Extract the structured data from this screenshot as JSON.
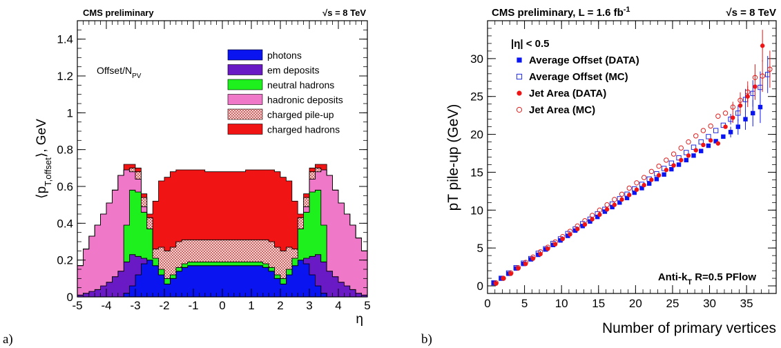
{
  "panel_a": {
    "tag": "a)",
    "header_left": "CMS preliminary",
    "header_right": "√s = 8 TeV",
    "ylabel": "⟨p_{T,offset}⟩, GeV",
    "xlabel": "η",
    "annotation": "Offset/N_{PV}"
  },
  "panel_b": {
    "tag": "b)",
    "header_left": "CMS preliminary, L = 1.6 fb^{-1}",
    "header_right": "√s = 8 TeV",
    "ylabel": "pT pile-up (GeV)",
    "xlabel": "Number of primary vertices",
    "cut_label": "|η| < 0.5",
    "algo_label": "Anti-k_{T} R=0.5 PFlow"
  },
  "colors": {
    "photons": "#0a14f0",
    "em_deposits": "#6a1ac4",
    "neutral_hadrons": "#1ef01e",
    "hadronic_deposits": "#f078c8",
    "charged_pileup": "#f2c4c4",
    "charged_hadrons": "#f01414",
    "offset_data": "#0a14f0",
    "offset_mc": "#1e28e0",
    "jetarea_data": "#f01414",
    "jetarea_mc": "#e01e1e"
  },
  "chart_data": [
    {
      "type": "area",
      "stacked": true,
      "x": [
        -5.0,
        -4.8,
        -4.6,
        -4.4,
        -4.2,
        -4.0,
        -3.8,
        -3.6,
        -3.4,
        -3.2,
        -3.0,
        -2.8,
        -2.6,
        -2.4,
        -2.2,
        -2.0,
        -1.8,
        -1.6,
        -1.4,
        -1.2,
        -1.0,
        -0.8,
        -0.6,
        -0.4,
        -0.2,
        0.0,
        0.2,
        0.4,
        0.6,
        0.8,
        1.0,
        1.2,
        1.4,
        1.6,
        1.8,
        2.0,
        2.2,
        2.4,
        2.6,
        2.8,
        3.0,
        3.2,
        3.4,
        3.6,
        3.8,
        4.0,
        4.2,
        4.4,
        4.6,
        4.8
      ],
      "xlim": [
        -5,
        5
      ],
      "ylim": [
        0,
        1.5
      ],
      "xticks": [
        "-5",
        "-4",
        "-3",
        "-2",
        "-1",
        "0",
        "1",
        "2",
        "3",
        "4",
        "5"
      ],
      "yticks": [
        "0",
        "0.2",
        "0.4",
        "0.6",
        "0.8",
        "1",
        "1.2",
        "1.4"
      ],
      "legend_position": "top-right",
      "series": [
        {
          "name": "photons",
          "color_key": "photons",
          "values": [
            0,
            0,
            0,
            0,
            0,
            0,
            0,
            0,
            0.02,
            0.06,
            0.12,
            0.18,
            0.2,
            0.17,
            0.12,
            0.07,
            0.1,
            0.14,
            0.16,
            0.17,
            0.17,
            0.17,
            0.17,
            0.17,
            0.17,
            0.17,
            0.17,
            0.17,
            0.17,
            0.17,
            0.17,
            0.17,
            0.16,
            0.14,
            0.1,
            0.07,
            0.12,
            0.17,
            0.2,
            0.18,
            0.12,
            0.06,
            0.02,
            0,
            0,
            0,
            0,
            0,
            0,
            0
          ]
        },
        {
          "name": "em deposits",
          "color_key": "em_deposits",
          "values": [
            0.01,
            0.02,
            0.03,
            0.04,
            0.06,
            0.08,
            0.11,
            0.14,
            0.17,
            0.17,
            0.1,
            0.03,
            0,
            0,
            0,
            0,
            0,
            0,
            0,
            0,
            0,
            0,
            0,
            0,
            0,
            0,
            0,
            0,
            0,
            0,
            0,
            0,
            0,
            0,
            0,
            0,
            0,
            0,
            0,
            0.03,
            0.1,
            0.17,
            0.17,
            0.14,
            0.11,
            0.08,
            0.06,
            0.04,
            0.02,
            0.01
          ]
        },
        {
          "name": "neutral hadrons",
          "color_key": "neutral_hadrons",
          "values": [
            0,
            0,
            0,
            0,
            0,
            0,
            0,
            0,
            0.2,
            0.35,
            0.35,
            0.25,
            0.17,
            0.04,
            0.03,
            0.03,
            0.02,
            0.02,
            0.02,
            0.02,
            0.02,
            0.02,
            0.02,
            0.02,
            0.02,
            0.02,
            0.02,
            0.02,
            0.02,
            0.02,
            0.02,
            0.02,
            0.02,
            0.02,
            0.02,
            0.03,
            0.03,
            0.04,
            0.17,
            0.25,
            0.35,
            0.35,
            0.2,
            0,
            0,
            0,
            0,
            0,
            0,
            0
          ]
        },
        {
          "name": "hadronic deposits",
          "color_key": "hadronic_deposits",
          "values": [
            0.16,
            0.24,
            0.3,
            0.35,
            0.39,
            0.43,
            0.47,
            0.52,
            0.3,
            0.1,
            0.07,
            0.03,
            0,
            0,
            0,
            0,
            0,
            0,
            0,
            0,
            0,
            0,
            0,
            0,
            0,
            0,
            0,
            0,
            0,
            0,
            0,
            0,
            0,
            0,
            0,
            0,
            0,
            0,
            0,
            0.03,
            0.07,
            0.1,
            0.3,
            0.52,
            0.47,
            0.43,
            0.39,
            0.35,
            0.3,
            0.24
          ]
        },
        {
          "name": "charged pile-up",
          "color_key": "charged_pileup",
          "values": [
            0,
            0,
            0,
            0,
            0,
            0,
            0,
            0,
            0,
            0.02,
            0.04,
            0.05,
            0.06,
            0.05,
            0.12,
            0.15,
            0.15,
            0.14,
            0.13,
            0.12,
            0.12,
            0.12,
            0.12,
            0.12,
            0.12,
            0.12,
            0.12,
            0.12,
            0.12,
            0.12,
            0.12,
            0.12,
            0.13,
            0.14,
            0.15,
            0.15,
            0.12,
            0.05,
            0.06,
            0.05,
            0.04,
            0.02,
            0,
            0,
            0,
            0,
            0,
            0,
            0,
            0
          ]
        },
        {
          "name": "charged hadrons",
          "color_key": "charged_hadrons",
          "values": [
            0,
            0,
            0,
            0,
            0,
            0,
            0,
            0,
            0.03,
            0.02,
            0.02,
            0.02,
            0.02,
            0.26,
            0.36,
            0.4,
            0.41,
            0.39,
            0.38,
            0.38,
            0.38,
            0.38,
            0.37,
            0.37,
            0.37,
            0.37,
            0.37,
            0.37,
            0.37,
            0.38,
            0.38,
            0.38,
            0.38,
            0.39,
            0.41,
            0.4,
            0.36,
            0.26,
            0.02,
            0.02,
            0.02,
            0.02,
            0.03,
            0,
            0,
            0,
            0,
            0,
            0,
            0
          ]
        }
      ]
    },
    {
      "type": "scatter",
      "xlim": [
        0,
        39
      ],
      "ylim": [
        -1,
        35
      ],
      "xticks": [
        "0",
        "5",
        "10",
        "15",
        "20",
        "25",
        "30",
        "35"
      ],
      "yticks": [
        "0",
        "5",
        "10",
        "15",
        "20",
        "25",
        "30"
      ],
      "legend_position": "top-left",
      "series": [
        {
          "name": "Average Offset (DATA)",
          "marker": "square-filled",
          "color_key": "offset_data",
          "x": [
            1,
            2,
            3,
            4,
            5,
            6,
            7,
            8,
            9,
            10,
            11,
            12,
            13,
            14,
            15,
            16,
            17,
            18,
            19,
            20,
            21,
            22,
            23,
            24,
            25,
            26,
            27,
            28,
            29,
            30,
            31,
            32,
            33,
            34,
            35,
            36,
            37
          ],
          "y": [
            0.4,
            1.0,
            1.6,
            2.3,
            2.9,
            3.5,
            4.1,
            4.8,
            5.4,
            6.0,
            6.6,
            7.3,
            7.9,
            8.5,
            9.1,
            9.8,
            10.4,
            11.0,
            11.6,
            12.3,
            12.9,
            13.5,
            14.1,
            14.7,
            15.4,
            16.0,
            16.6,
            17.2,
            17.8,
            18.5,
            19.1,
            19.7,
            20.3,
            21.0,
            22.0,
            22.8,
            23.6
          ]
        },
        {
          "name": "Average Offset (MC)",
          "marker": "square-open",
          "color_key": "offset_mc",
          "x": [
            1,
            2,
            3,
            4,
            5,
            6,
            7,
            8,
            9,
            10,
            11,
            12,
            13,
            14,
            15,
            16,
            17,
            18,
            19,
            20,
            21,
            22,
            23,
            24,
            25,
            26,
            27,
            28,
            29,
            30,
            31,
            32,
            33,
            34,
            35,
            36,
            37,
            38
          ],
          "y": [
            0.4,
            1.0,
            1.7,
            2.4,
            3.0,
            3.6,
            4.3,
            4.9,
            5.6,
            6.2,
            6.9,
            7.5,
            8.2,
            8.8,
            9.5,
            10.1,
            10.8,
            11.5,
            12.1,
            12.8,
            13.4,
            14.1,
            14.8,
            15.5,
            16.2,
            16.9,
            17.6,
            18.3,
            19.0,
            19.7,
            20.5,
            21.2,
            22.0,
            22.8,
            24.6,
            25.4,
            26.2,
            27.9
          ]
        },
        {
          "name": "Jet Area (DATA)",
          "marker": "circle-filled",
          "color_key": "jetarea_data",
          "x": [
            1,
            2,
            3,
            4,
            5,
            6,
            7,
            8,
            9,
            10,
            11,
            12,
            13,
            14,
            15,
            16,
            17,
            18,
            19,
            20,
            21,
            22,
            23,
            24,
            25,
            26,
            27,
            28,
            29,
            30,
            31,
            32,
            33,
            34,
            35,
            36,
            37
          ],
          "y": [
            0.3,
            1.0,
            1.6,
            2.3,
            2.9,
            3.6,
            4.2,
            4.9,
            5.5,
            6.2,
            6.8,
            7.5,
            8.1,
            8.8,
            9.4,
            10.1,
            10.7,
            11.4,
            12.0,
            12.7,
            13.3,
            14.0,
            14.6,
            15.3,
            15.9,
            16.6,
            17.2,
            17.9,
            18.6,
            19.2,
            18.8,
            21.0,
            22.2,
            23.8,
            25.0,
            26.3,
            31.7
          ]
        },
        {
          "name": "Jet Area (MC)",
          "marker": "circle-open",
          "color_key": "jetarea_mc",
          "x": [
            1,
            2,
            3,
            4,
            5,
            6,
            7,
            8,
            9,
            10,
            11,
            12,
            13,
            14,
            15,
            16,
            17,
            18,
            19,
            20,
            21,
            22,
            23,
            24,
            25,
            26,
            27,
            28,
            29,
            30,
            31,
            32,
            33,
            34,
            35,
            36,
            37,
            38
          ],
          "y": [
            0.4,
            1.0,
            1.7,
            2.4,
            3.1,
            3.8,
            4.5,
            5.1,
            5.8,
            6.5,
            7.2,
            7.9,
            8.6,
            9.3,
            10.0,
            10.7,
            11.4,
            12.1,
            12.9,
            13.6,
            14.3,
            15.1,
            15.8,
            16.6,
            17.4,
            18.2,
            19.0,
            19.8,
            20.5,
            21.1,
            22.4,
            22.8,
            23.6,
            24.5,
            25.6,
            27.5,
            27.7,
            28.6
          ]
        }
      ]
    }
  ]
}
